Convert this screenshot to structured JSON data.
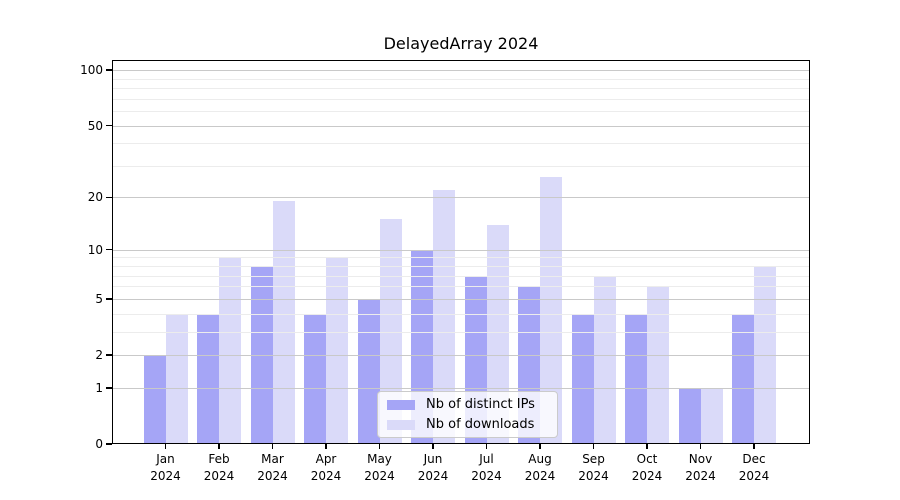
{
  "title": "DelayedArray 2024",
  "chart_data": {
    "type": "bar",
    "title": "DelayedArray 2024",
    "y_scale": "log1p",
    "grid": "on",
    "legend_position": "bottom-center",
    "categories": [
      "Jan 2024",
      "Feb 2024",
      "Mar 2024",
      "Apr 2024",
      "May 2024",
      "Jun 2024",
      "Jul 2024",
      "Aug 2024",
      "Sep 2024",
      "Oct 2024",
      "Nov 2024",
      "Dec 2024"
    ],
    "series": [
      {
        "name": "Nb of distinct IPs",
        "color": "#a5a5f6",
        "values": [
          2,
          4,
          8,
          4,
          5,
          10,
          7,
          6,
          4,
          4,
          1,
          4
        ]
      },
      {
        "name": "Nb of downloads",
        "color": "#dadaf9",
        "values": [
          4,
          9,
          19,
          9,
          15,
          22,
          14,
          26,
          7,
          6,
          1,
          8
        ]
      }
    ],
    "y_ticks": [
      0,
      1,
      2,
      5,
      10,
      20,
      50,
      100
    ],
    "y_minor_ticks": [
      3,
      4,
      6,
      7,
      8,
      9,
      30,
      40,
      60,
      70,
      80,
      90
    ],
    "ylim": [
      0,
      115
    ],
    "colors": {
      "major_grid": "#c9c9c9",
      "minor_grid": "#ececec",
      "axis": "#000000"
    }
  }
}
